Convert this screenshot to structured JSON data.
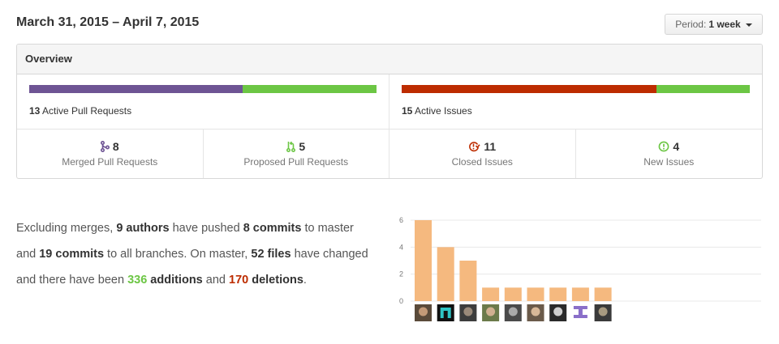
{
  "header": {
    "date_range": "March 31, 2015 – April 7, 2015",
    "period_label": "Period:",
    "period_value": "1 week"
  },
  "overview": {
    "title": "Overview",
    "pull_requests": {
      "count": "13",
      "label": "Active Pull Requests",
      "merged_fraction": 0.615,
      "colors": [
        "#6e5494",
        "#6cc644"
      ]
    },
    "issues": {
      "count": "15",
      "label": "Active Issues",
      "closed_fraction": 0.733,
      "colors": [
        "#bd2c00",
        "#6cc644"
      ]
    },
    "stats": [
      {
        "icon": "git-merge-icon",
        "count": "8",
        "label": "Merged Pull Requests",
        "color": "#6e5494"
      },
      {
        "icon": "git-pull-request-icon",
        "count": "5",
        "label": "Proposed Pull Requests",
        "color": "#6cc644"
      },
      {
        "icon": "issue-closed-icon",
        "count": "11",
        "label": "Closed Issues",
        "color": "#bd2c00"
      },
      {
        "icon": "issue-opened-icon",
        "count": "4",
        "label": "New Issues",
        "color": "#6cc644"
      }
    ]
  },
  "summary": {
    "t1": "Excluding merges, ",
    "authors": "9 authors",
    "t2": " have pushed ",
    "commits_master": "8 commits",
    "t3": " to master and ",
    "commits_all": "19 commits",
    "t4": " to all branches. On master, ",
    "files": "52 files",
    "t5": " have changed and there have been ",
    "additions_num": "336",
    "additions_word": " additions",
    "t6": " and ",
    "deletions_num": "170",
    "deletions_word": "deletions",
    "t7": "."
  },
  "chart_data": {
    "type": "bar",
    "categories": [
      "author-1",
      "author-2",
      "author-3",
      "author-4",
      "author-5",
      "author-6",
      "author-7",
      "author-8",
      "author-9"
    ],
    "values": [
      6,
      4,
      3,
      1,
      1,
      1,
      1,
      1,
      1
    ],
    "yticks": [
      0,
      2,
      4,
      6
    ],
    "ylim": [
      0,
      6
    ],
    "bar_color": "#f5b97f",
    "grid": true,
    "xlabel": "",
    "ylabel": ""
  }
}
